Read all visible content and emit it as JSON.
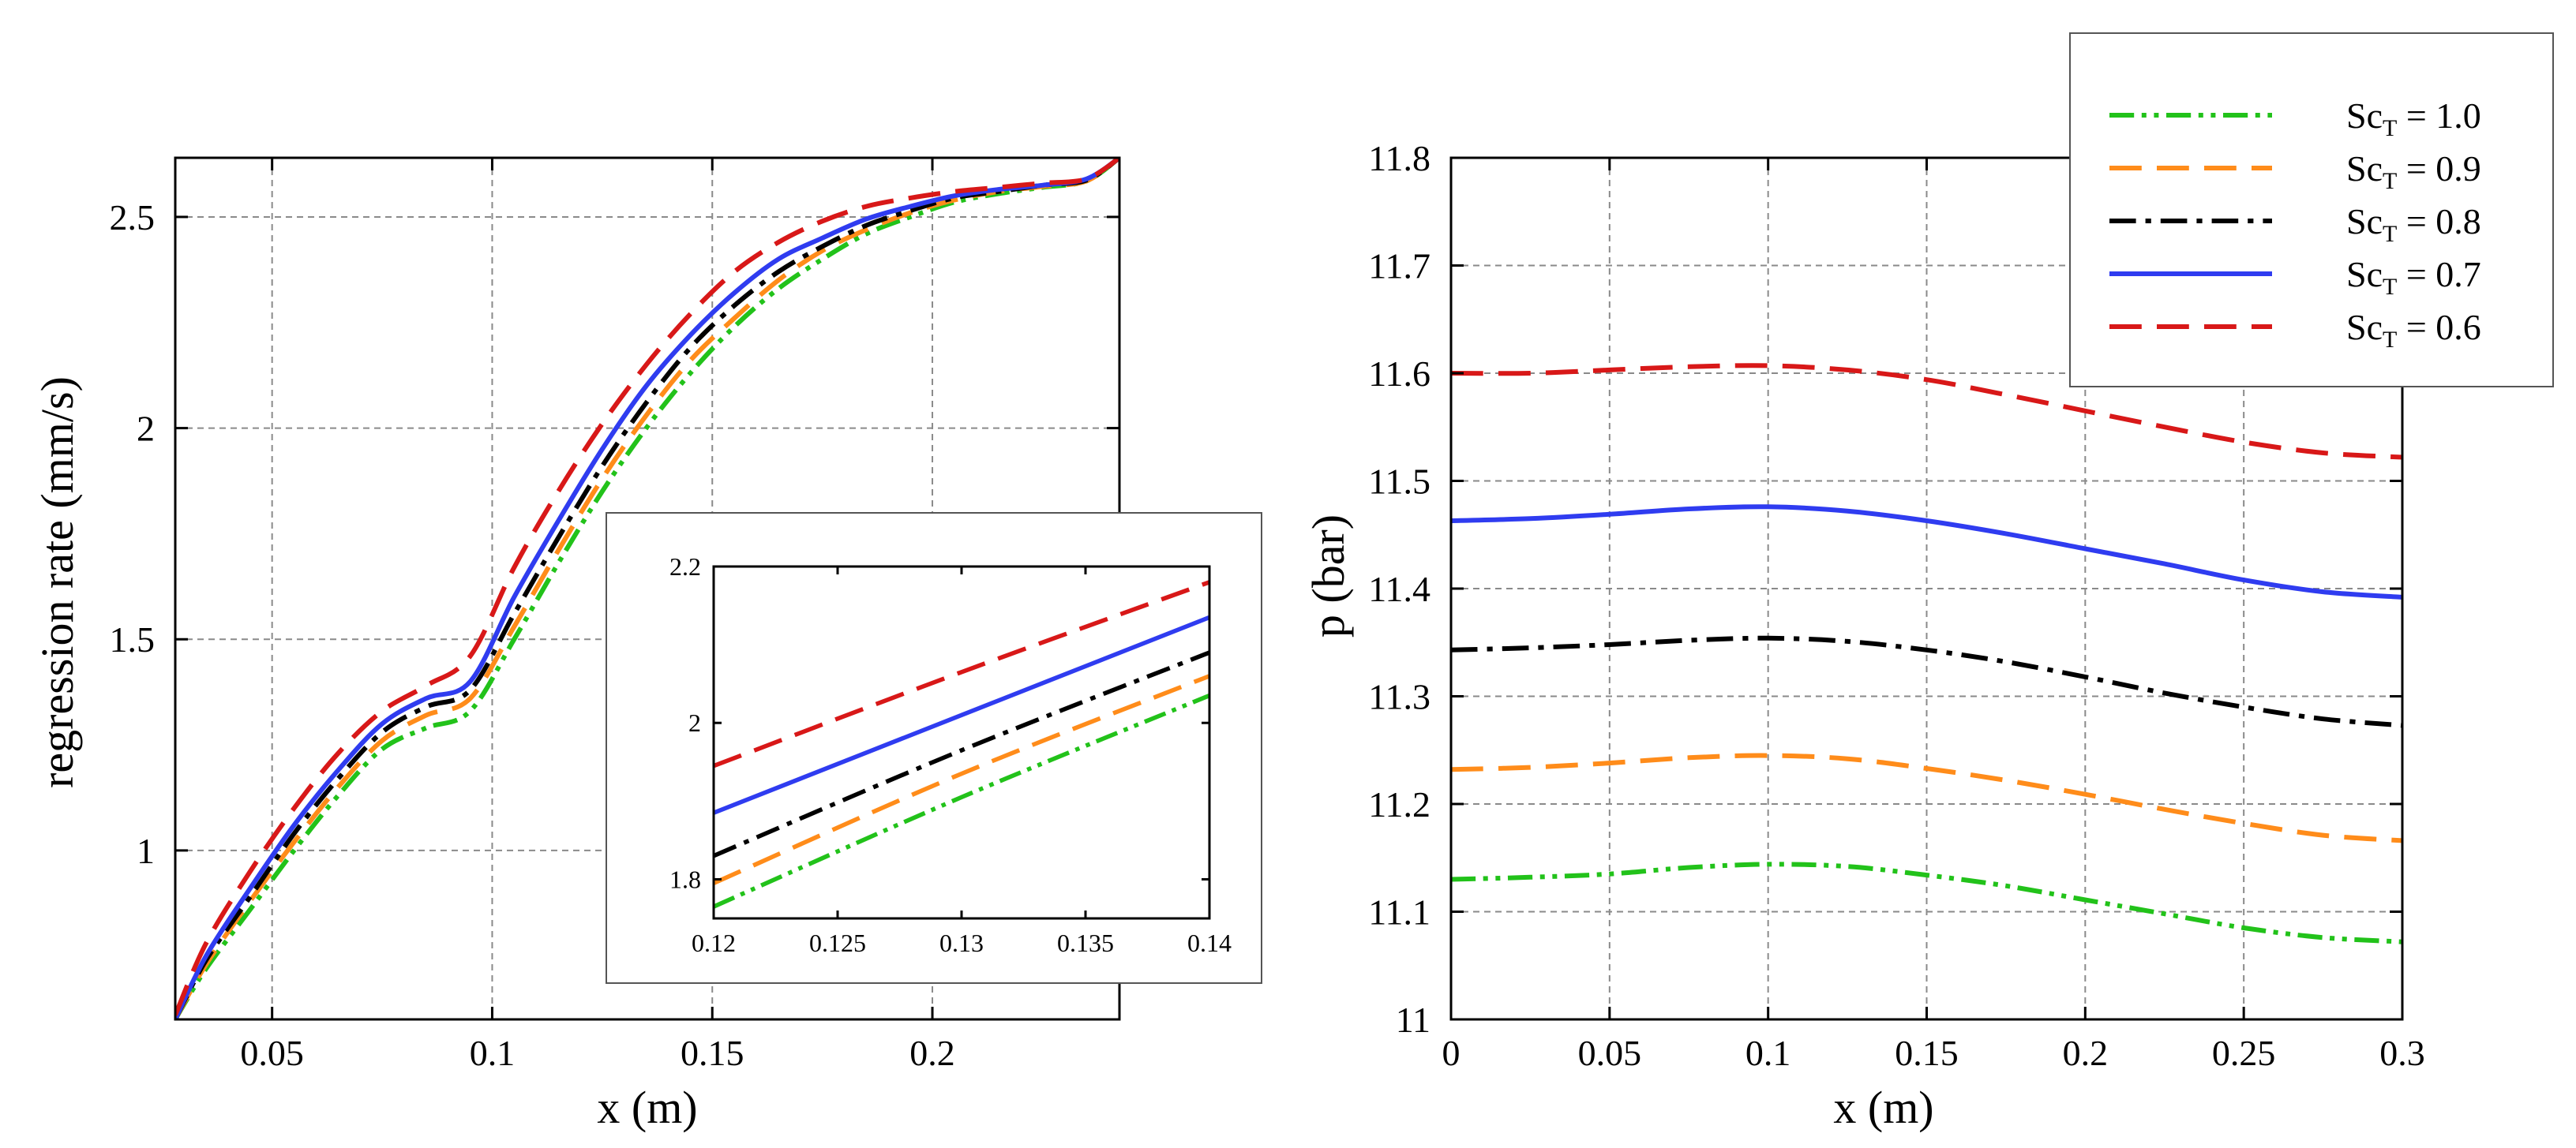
{
  "series_styles": [
    {
      "name": "Sc_T = 1.0",
      "label_base": "Sc",
      "label_sub": "T",
      "label_tail": " = 1.0",
      "color": "#22c21a",
      "dash": "dashdotdot"
    },
    {
      "name": "Sc_T = 0.9",
      "label_base": "Sc",
      "label_sub": "T",
      "label_tail": " = 0.9",
      "color": "#ff8c1a",
      "dash": "dashed"
    },
    {
      "name": "Sc_T = 0.8",
      "label_base": "Sc",
      "label_sub": "T",
      "label_tail": " = 0.8",
      "color": "#000000",
      "dash": "dashdot"
    },
    {
      "name": "Sc_T = 0.7",
      "label_base": "Sc",
      "label_sub": "T",
      "label_tail": " = 0.7",
      "color": "#2f3cf0",
      "dash": "solid"
    },
    {
      "name": "Sc_T = 0.6",
      "label_base": "Sc",
      "label_sub": "T",
      "label_tail": " = 0.6",
      "color": "#d81818",
      "dash": "dashed"
    }
  ],
  "chart_data": [
    {
      "id": "regression",
      "type": "line",
      "title": "",
      "xlabel": "x (m)",
      "ylabel": "regression rate (mm/s)",
      "xlim": [
        0.028,
        0.2425
      ],
      "ylim": [
        0.6,
        2.64
      ],
      "grid": true,
      "xticks": [
        0.05,
        0.1,
        0.15,
        0.2
      ],
      "xtick_labels": [
        "0.05",
        "0.1",
        "0.15",
        "0.2"
      ],
      "yticks": [
        1,
        1.5,
        2,
        2.5
      ],
      "ytick_labels": [
        "1",
        "1.5",
        "2",
        "2.5"
      ],
      "series": [
        {
          "name": "Sc_T = 1.0",
          "x": [
            0.028,
            0.035,
            0.045,
            0.055,
            0.065,
            0.075,
            0.085,
            0.095,
            0.105,
            0.115,
            0.125,
            0.135,
            0.145,
            0.155,
            0.165,
            0.175,
            0.185,
            0.195,
            0.205,
            0.215,
            0.225,
            0.235,
            0.2425
          ],
          "y": [
            0.6,
            0.72,
            0.86,
            1.0,
            1.13,
            1.24,
            1.29,
            1.33,
            1.5,
            1.68,
            1.85,
            2.0,
            2.13,
            2.24,
            2.33,
            2.4,
            2.46,
            2.5,
            2.535,
            2.555,
            2.57,
            2.585,
            2.64
          ]
        },
        {
          "name": "Sc_T = 0.9",
          "x": [
            0.028,
            0.035,
            0.045,
            0.055,
            0.065,
            0.075,
            0.085,
            0.095,
            0.105,
            0.115,
            0.125,
            0.135,
            0.145,
            0.155,
            0.165,
            0.175,
            0.185,
            0.195,
            0.205,
            0.215,
            0.225,
            0.235,
            0.2425
          ],
          "y": [
            0.6,
            0.73,
            0.88,
            1.02,
            1.15,
            1.26,
            1.32,
            1.36,
            1.53,
            1.71,
            1.88,
            2.03,
            2.16,
            2.26,
            2.35,
            2.42,
            2.47,
            2.51,
            2.54,
            2.56,
            2.572,
            2.585,
            2.64
          ]
        },
        {
          "name": "Sc_T = 0.8",
          "x": [
            0.028,
            0.035,
            0.045,
            0.055,
            0.065,
            0.075,
            0.085,
            0.095,
            0.105,
            0.115,
            0.125,
            0.135,
            0.145,
            0.155,
            0.165,
            0.175,
            0.185,
            0.195,
            0.205,
            0.215,
            0.225,
            0.235,
            0.2425
          ],
          "y": [
            0.6,
            0.74,
            0.89,
            1.04,
            1.17,
            1.28,
            1.34,
            1.38,
            1.56,
            1.74,
            1.91,
            2.06,
            2.19,
            2.29,
            2.37,
            2.43,
            2.48,
            2.515,
            2.545,
            2.56,
            2.575,
            2.587,
            2.64
          ]
        },
        {
          "name": "Sc_T = 0.7",
          "x": [
            0.028,
            0.035,
            0.045,
            0.055,
            0.065,
            0.075,
            0.085,
            0.095,
            0.105,
            0.115,
            0.125,
            0.135,
            0.145,
            0.155,
            0.165,
            0.175,
            0.185,
            0.195,
            0.205,
            0.215,
            0.225,
            0.235,
            0.2425
          ],
          "y": [
            0.6,
            0.75,
            0.91,
            1.06,
            1.19,
            1.3,
            1.36,
            1.4,
            1.6,
            1.78,
            1.95,
            2.1,
            2.22,
            2.32,
            2.4,
            2.45,
            2.495,
            2.525,
            2.55,
            2.565,
            2.575,
            2.59,
            2.64
          ]
        },
        {
          "name": "Sc_T = 0.6",
          "x": [
            0.028,
            0.035,
            0.045,
            0.055,
            0.065,
            0.075,
            0.085,
            0.095,
            0.105,
            0.115,
            0.125,
            0.135,
            0.145,
            0.155,
            0.165,
            0.175,
            0.185,
            0.195,
            0.205,
            0.215,
            0.225,
            0.235,
            0.2425
          ],
          "y": [
            0.61,
            0.78,
            0.95,
            1.1,
            1.23,
            1.33,
            1.39,
            1.46,
            1.67,
            1.85,
            2.01,
            2.15,
            2.27,
            2.37,
            2.44,
            2.49,
            2.525,
            2.545,
            2.56,
            2.57,
            2.58,
            2.59,
            2.64
          ]
        }
      ]
    },
    {
      "id": "inset",
      "type": "line",
      "title": "",
      "xlabel": "",
      "ylabel": "",
      "xlim": [
        0.12,
        0.14
      ],
      "ylim": [
        1.75,
        2.2
      ],
      "grid": false,
      "xticks": [
        0.12,
        0.125,
        0.13,
        0.135,
        0.14
      ],
      "xtick_labels": [
        "0.12",
        "0.125",
        "0.13",
        "0.135",
        "0.14"
      ],
      "yticks": [
        1.8,
        2.0,
        2.2
      ],
      "ytick_labels": [
        "1.8",
        "2",
        "2.2"
      ],
      "series": [
        {
          "name": "Sc_T = 1.0",
          "x": [
            0.12,
            0.13,
            0.14
          ],
          "y": [
            1.765,
            1.905,
            2.035
          ]
        },
        {
          "name": "Sc_T = 0.9",
          "x": [
            0.12,
            0.13,
            0.14
          ],
          "y": [
            1.795,
            1.935,
            2.06
          ]
        },
        {
          "name": "Sc_T = 0.8",
          "x": [
            0.12,
            0.13,
            0.14
          ],
          "y": [
            1.83,
            1.965,
            2.09
          ]
        },
        {
          "name": "Sc_T = 0.7",
          "x": [
            0.12,
            0.13,
            0.14
          ],
          "y": [
            1.885,
            2.01,
            2.135
          ]
        },
        {
          "name": "Sc_T = 0.6",
          "x": [
            0.12,
            0.13,
            0.14
          ],
          "y": [
            1.945,
            2.065,
            2.18
          ]
        }
      ]
    },
    {
      "id": "pressure",
      "type": "line",
      "title": "",
      "xlabel": "x (m)",
      "ylabel": "p (bar)",
      "xlim": [
        0,
        0.3
      ],
      "ylim": [
        11.0,
        11.8
      ],
      "grid": true,
      "legend": "top-right",
      "xticks": [
        0,
        0.05,
        0.1,
        0.15,
        0.2,
        0.25,
        0.3
      ],
      "xtick_labels": [
        "0",
        "0.05",
        "0.1",
        "0.15",
        "0.2",
        "0.25",
        "0.3"
      ],
      "yticks": [
        11.0,
        11.1,
        11.2,
        11.3,
        11.4,
        11.5,
        11.6,
        11.7,
        11.8
      ],
      "ytick_labels": [
        "11",
        "11.1",
        "11.2",
        "11.3",
        "11.4",
        "11.5",
        "11.6",
        "11.7",
        "11.8"
      ],
      "series": [
        {
          "name": "Sc_T = 1.0",
          "x": [
            0,
            0.025,
            0.05,
            0.075,
            0.1,
            0.125,
            0.15,
            0.175,
            0.2,
            0.225,
            0.25,
            0.275,
            0.3
          ],
          "y": [
            11.13,
            11.132,
            11.135,
            11.141,
            11.144,
            11.142,
            11.134,
            11.124,
            11.111,
            11.098,
            11.085,
            11.076,
            11.072
          ]
        },
        {
          "name": "Sc_T = 0.9",
          "x": [
            0,
            0.025,
            0.05,
            0.075,
            0.1,
            0.125,
            0.15,
            0.175,
            0.2,
            0.225,
            0.25,
            0.275,
            0.3
          ],
          "y": [
            11.232,
            11.234,
            11.238,
            11.243,
            11.245,
            11.242,
            11.233,
            11.222,
            11.209,
            11.195,
            11.182,
            11.171,
            11.166
          ]
        },
        {
          "name": "Sc_T = 0.8",
          "x": [
            0,
            0.025,
            0.05,
            0.075,
            0.1,
            0.125,
            0.15,
            0.175,
            0.2,
            0.225,
            0.25,
            0.275,
            0.3
          ],
          "y": [
            11.343,
            11.345,
            11.348,
            11.352,
            11.354,
            11.351,
            11.343,
            11.332,
            11.318,
            11.303,
            11.29,
            11.279,
            11.273
          ]
        },
        {
          "name": "Sc_T = 0.7",
          "x": [
            0,
            0.025,
            0.05,
            0.075,
            0.1,
            0.125,
            0.15,
            0.175,
            0.2,
            0.225,
            0.25,
            0.275,
            0.3
          ],
          "y": [
            11.463,
            11.465,
            11.469,
            11.474,
            11.476,
            11.472,
            11.463,
            11.451,
            11.437,
            11.423,
            11.408,
            11.397,
            11.392
          ]
        },
        {
          "name": "Sc_T = 0.6",
          "x": [
            0,
            0.025,
            0.05,
            0.075,
            0.1,
            0.125,
            0.15,
            0.175,
            0.2,
            0.225,
            0.25,
            0.275,
            0.3
          ],
          "y": [
            11.6,
            11.6,
            11.603,
            11.606,
            11.607,
            11.603,
            11.594,
            11.58,
            11.565,
            11.55,
            11.536,
            11.526,
            11.522
          ]
        }
      ]
    }
  ]
}
